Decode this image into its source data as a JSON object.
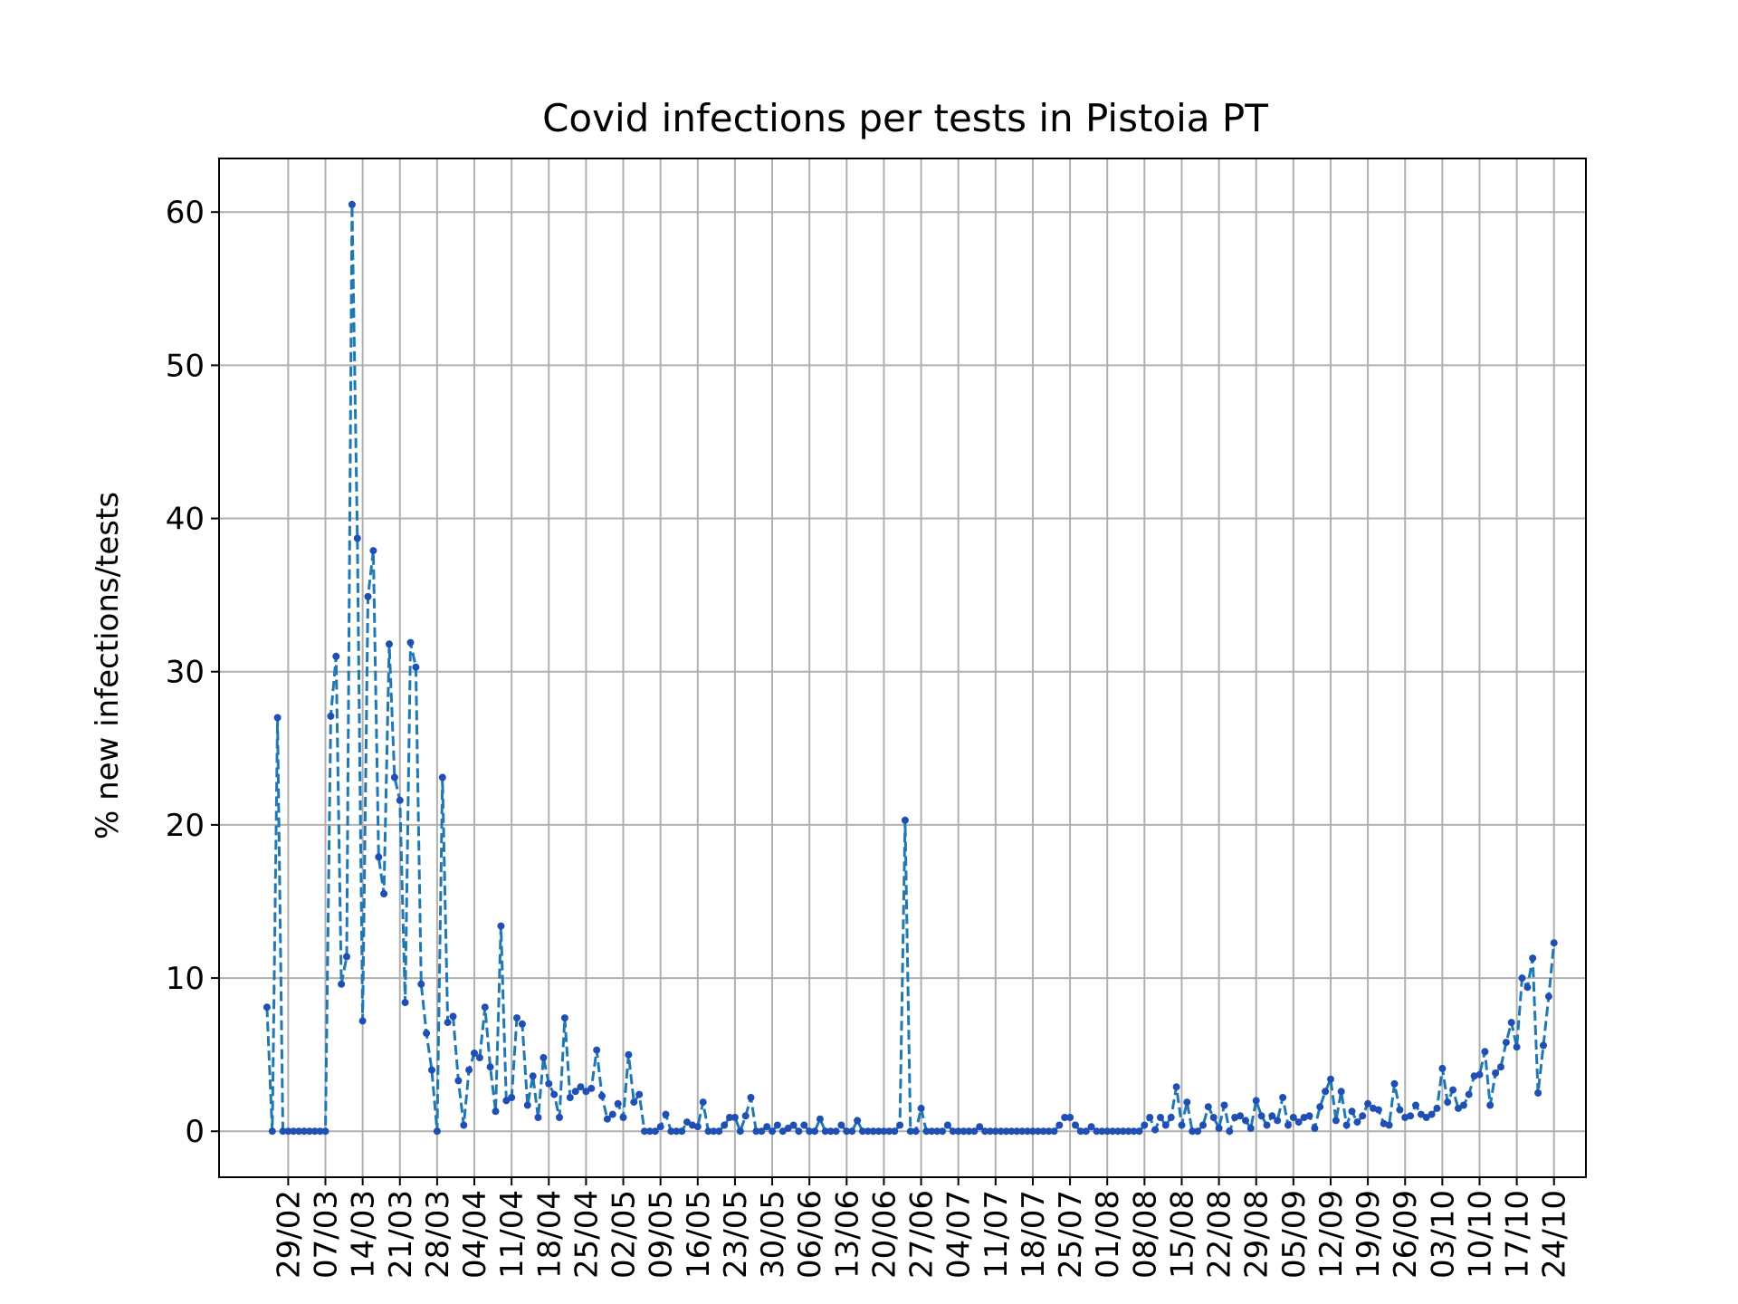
{
  "chart_data": {
    "type": "line",
    "title": "Covid infections per tests in Pistoia PT",
    "xlabel": "",
    "ylabel": "% new infections/tests",
    "ylim": [
      -3,
      63.5
    ],
    "xlim": [
      "2020-02-16",
      "2020-10-30"
    ],
    "yticks": [
      0,
      10,
      20,
      30,
      40,
      50,
      60
    ],
    "xticks": [
      "2020-02-29",
      "2020-03-07",
      "2020-03-14",
      "2020-03-21",
      "2020-03-28",
      "2020-04-04",
      "2020-04-11",
      "2020-04-18",
      "2020-04-25",
      "2020-05-02",
      "2020-05-09",
      "2020-05-16",
      "2020-05-23",
      "2020-05-30",
      "2020-06-06",
      "2020-06-13",
      "2020-06-20",
      "2020-06-27",
      "2020-07-04",
      "2020-07-11",
      "2020-07-18",
      "2020-07-25",
      "2020-08-01",
      "2020-08-08",
      "2020-08-15",
      "2020-08-22",
      "2020-08-29",
      "2020-09-05",
      "2020-09-12",
      "2020-09-19",
      "2020-09-26",
      "2020-10-03",
      "2020-10-10",
      "2020-10-17",
      "2020-10-24"
    ],
    "xtick_labels": [
      "29/02",
      "07/03",
      "14/03",
      "21/03",
      "28/03",
      "04/04",
      "11/04",
      "18/04",
      "25/04",
      "02/05",
      "09/05",
      "16/05",
      "23/05",
      "30/05",
      "06/06",
      "13/06",
      "20/06",
      "27/06",
      "04/07",
      "11/07",
      "18/07",
      "25/07",
      "01/08",
      "08/08",
      "15/08",
      "22/08",
      "29/08",
      "05/09",
      "12/09",
      "19/09",
      "26/09",
      "03/10",
      "10/10",
      "17/10",
      "24/10"
    ],
    "grid": true,
    "legend": "none",
    "series": [
      {
        "color": "#1f77b4",
        "line_style": "dashed",
        "marker": "dot",
        "x": [
          "2020-02-25",
          "2020-02-26",
          "2020-02-27",
          "2020-02-28",
          "2020-02-29",
          "2020-03-01",
          "2020-03-02",
          "2020-03-03",
          "2020-03-04",
          "2020-03-05",
          "2020-03-06",
          "2020-03-07",
          "2020-03-08",
          "2020-03-09",
          "2020-03-10",
          "2020-03-11",
          "2020-03-12",
          "2020-03-13",
          "2020-03-14",
          "2020-03-15",
          "2020-03-16",
          "2020-03-17",
          "2020-03-18",
          "2020-03-19",
          "2020-03-20",
          "2020-03-21",
          "2020-03-22",
          "2020-03-23",
          "2020-03-24",
          "2020-03-25",
          "2020-03-26",
          "2020-03-27",
          "2020-03-28",
          "2020-03-29",
          "2020-03-30",
          "2020-03-31",
          "2020-04-01",
          "2020-04-02",
          "2020-04-03",
          "2020-04-04",
          "2020-04-05",
          "2020-04-06",
          "2020-04-07",
          "2020-04-08",
          "2020-04-09",
          "2020-04-10",
          "2020-04-11",
          "2020-04-12",
          "2020-04-13",
          "2020-04-14",
          "2020-04-15",
          "2020-04-16",
          "2020-04-17",
          "2020-04-18",
          "2020-04-19",
          "2020-04-20",
          "2020-04-21",
          "2020-04-22",
          "2020-04-23",
          "2020-04-24",
          "2020-04-25",
          "2020-04-26",
          "2020-04-27",
          "2020-04-28",
          "2020-04-29",
          "2020-04-30",
          "2020-05-01",
          "2020-05-02",
          "2020-05-03",
          "2020-05-04",
          "2020-05-05",
          "2020-05-06",
          "2020-05-07",
          "2020-05-08",
          "2020-05-09",
          "2020-05-10",
          "2020-05-11",
          "2020-05-12",
          "2020-05-13",
          "2020-05-14",
          "2020-05-15",
          "2020-05-16",
          "2020-05-17",
          "2020-05-18",
          "2020-05-19",
          "2020-05-20",
          "2020-05-21",
          "2020-05-22",
          "2020-05-23",
          "2020-05-24",
          "2020-05-25",
          "2020-05-26",
          "2020-05-27",
          "2020-05-28",
          "2020-05-29",
          "2020-05-30",
          "2020-05-31",
          "2020-06-01",
          "2020-06-02",
          "2020-06-03",
          "2020-06-04",
          "2020-06-05",
          "2020-06-06",
          "2020-06-07",
          "2020-06-08",
          "2020-06-09",
          "2020-06-10",
          "2020-06-11",
          "2020-06-12",
          "2020-06-13",
          "2020-06-14",
          "2020-06-15",
          "2020-06-16",
          "2020-06-17",
          "2020-06-18",
          "2020-06-19",
          "2020-06-20",
          "2020-06-21",
          "2020-06-22",
          "2020-06-23",
          "2020-06-24",
          "2020-06-25",
          "2020-06-26",
          "2020-06-27",
          "2020-06-28",
          "2020-06-29",
          "2020-06-30",
          "2020-07-01",
          "2020-07-02",
          "2020-07-03",
          "2020-07-04",
          "2020-07-05",
          "2020-07-06",
          "2020-07-07",
          "2020-07-08",
          "2020-07-09",
          "2020-07-10",
          "2020-07-11",
          "2020-07-12",
          "2020-07-13",
          "2020-07-14",
          "2020-07-15",
          "2020-07-16",
          "2020-07-17",
          "2020-07-18",
          "2020-07-19",
          "2020-07-20",
          "2020-07-21",
          "2020-07-22",
          "2020-07-23",
          "2020-07-24",
          "2020-07-25",
          "2020-07-26",
          "2020-07-27",
          "2020-07-28",
          "2020-07-29",
          "2020-07-30",
          "2020-07-31",
          "2020-08-01",
          "2020-08-02",
          "2020-08-03",
          "2020-08-04",
          "2020-08-05",
          "2020-08-06",
          "2020-08-07",
          "2020-08-08",
          "2020-08-09",
          "2020-08-10",
          "2020-08-11",
          "2020-08-12",
          "2020-08-13",
          "2020-08-14",
          "2020-08-15",
          "2020-08-16",
          "2020-08-17",
          "2020-08-18",
          "2020-08-19",
          "2020-08-20",
          "2020-08-21",
          "2020-08-22",
          "2020-08-23",
          "2020-08-24",
          "2020-08-25",
          "2020-08-26",
          "2020-08-27",
          "2020-08-28",
          "2020-08-29",
          "2020-08-30",
          "2020-08-31",
          "2020-09-01",
          "2020-09-02",
          "2020-09-03",
          "2020-09-04",
          "2020-09-05",
          "2020-09-06",
          "2020-09-07",
          "2020-09-08",
          "2020-09-09",
          "2020-09-10",
          "2020-09-11",
          "2020-09-12",
          "2020-09-13",
          "2020-09-14",
          "2020-09-15",
          "2020-09-16",
          "2020-09-17",
          "2020-09-18",
          "2020-09-19",
          "2020-09-20",
          "2020-09-21",
          "2020-09-22",
          "2020-09-23",
          "2020-09-24",
          "2020-09-25",
          "2020-09-26",
          "2020-09-27",
          "2020-09-28",
          "2020-09-29",
          "2020-09-30",
          "2020-10-01",
          "2020-10-02",
          "2020-10-03",
          "2020-10-04",
          "2020-10-05",
          "2020-10-06",
          "2020-10-07",
          "2020-10-08",
          "2020-10-09",
          "2020-10-10",
          "2020-10-11",
          "2020-10-12",
          "2020-10-13",
          "2020-10-14",
          "2020-10-15",
          "2020-10-16",
          "2020-10-17",
          "2020-10-18",
          "2020-10-19",
          "2020-10-20",
          "2020-10-21",
          "2020-10-22",
          "2020-10-23",
          "2020-10-24"
        ],
        "values": [
          8.1,
          0,
          27,
          0,
          0,
          0,
          0,
          0,
          0,
          0,
          0,
          0,
          27.1,
          31,
          9.6,
          11.4,
          60.5,
          38.7,
          7.2,
          34.9,
          37.9,
          17.9,
          15.5,
          31.8,
          23.1,
          21.6,
          8.4,
          31.9,
          30.3,
          9.6,
          6.4,
          4.0,
          0,
          23.1,
          7.1,
          7.5,
          3.3,
          0.4,
          4.0,
          5.1,
          4.8,
          8.1,
          4.2,
          1.3,
          13.4,
          2.0,
          2.2,
          7.4,
          7.0,
          1.7,
          3.6,
          0.9,
          4.8,
          3.1,
          2.4,
          0.9,
          7.4,
          2.2,
          2.6,
          2.9,
          2.6,
          2.8,
          5.3,
          2.3,
          0.8,
          1.1,
          1.8,
          0.9,
          5.0,
          1.9,
          2.4,
          0,
          0,
          0,
          0.3,
          1.1,
          0,
          0,
          0,
          0.6,
          0.4,
          0.3,
          1.9,
          0,
          0,
          0,
          0.4,
          0.9,
          0.9,
          0,
          1.0,
          2.2,
          0,
          0,
          0.3,
          0,
          0.4,
          0,
          0.2,
          0.4,
          0,
          0.4,
          0,
          0,
          0.8,
          0,
          0,
          0,
          0.4,
          0,
          0,
          0.7,
          0,
          0,
          0,
          0,
          0,
          0,
          0,
          0.4,
          20.3,
          0,
          0,
          1.5,
          0,
          0,
          0,
          0,
          0.4,
          0,
          0,
          0,
          0,
          0,
          0.3,
          0,
          0,
          0,
          0,
          0,
          0,
          0,
          0,
          0,
          0,
          0,
          0,
          0,
          0,
          0.4,
          0.9,
          0.9,
          0.4,
          0,
          0,
          0.3,
          0,
          0,
          0,
          0,
          0,
          0,
          0,
          0,
          0,
          0.4,
          0.9,
          0.1,
          0.9,
          0.4,
          0.9,
          2.9,
          0.4,
          1.9,
          0,
          0,
          0.4,
          1.6,
          0.9,
          0.2,
          1.7,
          0,
          0.9,
          1.0,
          0.7,
          0.2,
          2.0,
          1.0,
          0.4,
          1.0,
          0.7,
          2.2,
          0.4,
          0.9,
          0.6,
          0.9,
          1.0,
          0.2,
          1.6,
          2.6,
          3.4,
          0.7,
          2.6,
          0.4,
          1.3,
          0.6,
          1.0,
          1.8,
          1.5,
          1.4,
          0.5,
          0.4,
          3.1,
          1.4,
          0.9,
          1.0,
          1.7,
          1.1,
          0.9,
          1.1,
          1.5,
          4.1,
          1.9,
          2.7,
          1.5,
          1.7,
          2.4,
          3.6,
          3.7,
          5.2,
          1.7,
          3.8,
          4.2,
          5.8,
          7.1,
          5.5,
          10.0,
          9.4,
          11.3,
          2.5,
          5.6,
          8.8,
          12.3
        ]
      }
    ]
  }
}
